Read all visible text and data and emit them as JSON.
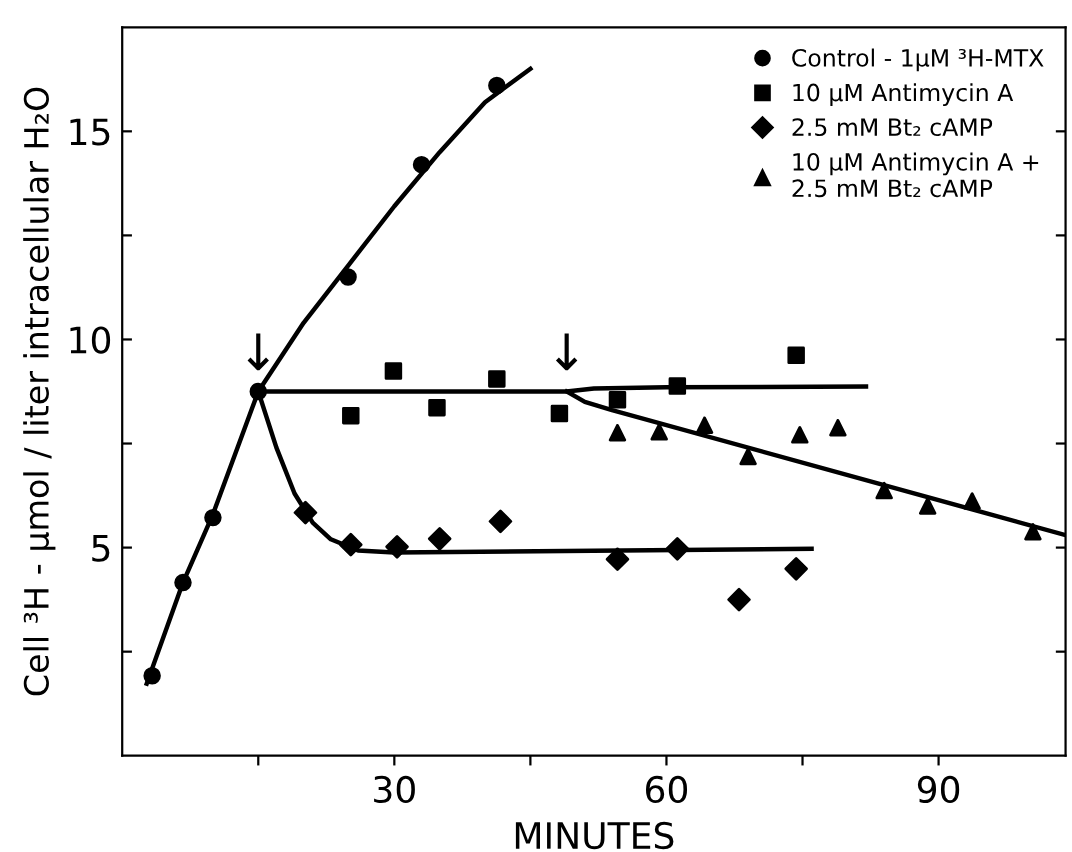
{
  "chart_data": {
    "type": "scatter",
    "xlabel": "MINUTES",
    "ylabel": "Cell ³H - µmol / liter intracellular H₂O",
    "xlim": [
      0,
      104
    ],
    "ylim": [
      0,
      17.5
    ],
    "xticks": [
      {
        "value": 15,
        "label": null
      },
      30,
      {
        "value": 45,
        "label": null
      },
      60,
      {
        "value": 75,
        "label": null
      },
      90
    ],
    "yticks": [
      {
        "value": 2.5,
        "label": null
      },
      5,
      {
        "value": 7.5,
        "label": null
      },
      10,
      {
        "value": 12.5,
        "label": null
      },
      15
    ],
    "grid": false,
    "legend": "top right",
    "series": [
      {
        "name": "Control - 1µM ³H-MTX",
        "color": "#000000",
        "marker": "circle",
        "x": [
          3.3,
          6.7,
          10.0,
          15.0,
          24.9,
          33.0,
          41.3
        ],
        "values": [
          1.92,
          4.16,
          5.72,
          8.75,
          11.5,
          14.2,
          16.1
        ]
      },
      {
        "name": "10 µM Antimycin A",
        "color": "#000000",
        "marker": "square",
        "x": [
          25.2,
          29.9,
          34.7,
          41.3,
          48.2,
          54.6,
          61.2,
          74.3
        ],
        "values": [
          8.17,
          9.24,
          8.36,
          9.05,
          8.22,
          8.55,
          8.88,
          9.62
        ]
      },
      {
        "name": "2.5 mM Bt₂ cAMP",
        "color": "#000000",
        "marker": "diamond",
        "x": [
          20.2,
          25.2,
          30.3,
          35.0,
          41.7,
          54.6,
          61.2,
          68.0,
          74.3
        ],
        "values": [
          5.84,
          5.07,
          5.02,
          5.21,
          5.63,
          4.72,
          4.97,
          3.75,
          4.49
        ]
      },
      {
        "name": "10 µM Antimycin A +\n2.5 mM Bt₂ cAMP",
        "color": "#000000",
        "marker": "triangle",
        "x": [
          54.6,
          59.2,
          64.2,
          69.0,
          74.7,
          78.9,
          84.0,
          88.8,
          93.7,
          100.4
        ],
        "values": [
          7.76,
          7.78,
          7.94,
          7.19,
          7.71,
          7.88,
          6.37,
          6.0,
          6.12,
          5.38
        ]
      },
      {
        "type": "line",
        "color": "#000000",
        "marker": "none",
        "line_style": "solid",
        "x": [
          2.7,
          6.7,
          10,
          15,
          20,
          25,
          30,
          35,
          40,
          45
        ],
        "values": [
          1.73,
          4.16,
          5.8,
          8.75,
          10.4,
          11.8,
          13.2,
          14.5,
          15.7,
          16.5
        ]
      },
      {
        "type": "line",
        "color": "#000000",
        "marker": "none",
        "line_style": "solid",
        "x": [
          15,
          49,
          52,
          60,
          82
        ],
        "values": [
          8.75,
          8.75,
          8.82,
          8.85,
          8.87
        ]
      },
      {
        "type": "line",
        "color": "#000000",
        "marker": "none",
        "line_style": "solid",
        "x": [
          15,
          17,
          19,
          21,
          23,
          26,
          30,
          76
        ],
        "values": [
          8.75,
          7.4,
          6.3,
          5.6,
          5.2,
          4.93,
          4.88,
          4.97
        ]
      },
      {
        "type": "line",
        "color": "#000000",
        "marker": "none",
        "line_style": "solid",
        "x": [
          49,
          51,
          54,
          104
        ],
        "values": [
          8.75,
          8.5,
          8.3,
          5.3
        ]
      }
    ],
    "annotations": [
      {
        "text": "↓",
        "x": 15,
        "y": 8.75
      },
      {
        "text": "↓",
        "x": 49,
        "y": 8.75
      }
    ]
  }
}
